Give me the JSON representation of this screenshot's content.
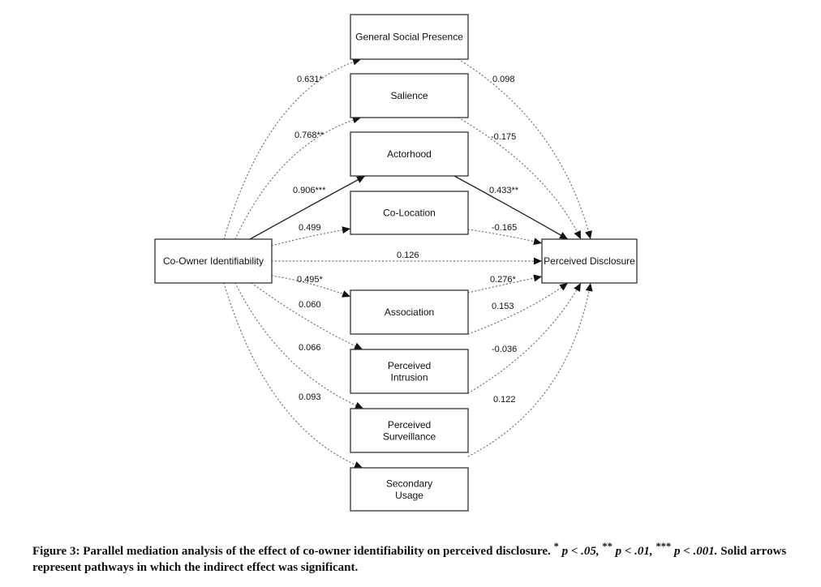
{
  "figure": {
    "nodes": {
      "x": "Co-Owner Identifiability",
      "y": "Perceived Disclosure",
      "mediators": [
        [
          "General Social Presence"
        ],
        [
          "Salience"
        ],
        [
          "Actorhood"
        ],
        [
          "Co-Location"
        ],
        [
          "Association"
        ],
        [
          "Perceived",
          "Intrusion"
        ],
        [
          "Perceived",
          "Surveillance"
        ],
        [
          "Secondary",
          "Usage"
        ]
      ]
    },
    "paths_a": [
      {
        "coef": "0.631*",
        "significant": false
      },
      {
        "coef": "0.768**",
        "significant": false
      },
      {
        "coef": "0.906***",
        "significant": true
      },
      {
        "coef": "0.499",
        "significant": false
      },
      {
        "coef": "0.495*",
        "significant": false
      },
      {
        "coef": "0.060",
        "significant": false
      },
      {
        "coef": "0.066",
        "significant": false
      },
      {
        "coef": "0.093",
        "significant": false
      }
    ],
    "paths_b": [
      {
        "coef": "0.098",
        "significant": false
      },
      {
        "coef": "-0.175",
        "significant": false
      },
      {
        "coef": "0.433**",
        "significant": true
      },
      {
        "coef": "-0.165",
        "significant": false
      },
      {
        "coef": "0.276*",
        "significant": false
      },
      {
        "coef": "0.153",
        "significant": false
      },
      {
        "coef": "-0.036",
        "significant": false
      },
      {
        "coef": "0.122",
        "significant": false
      }
    ],
    "direct": {
      "coef": "0.126",
      "significant": false
    }
  },
  "caption": {
    "lead": "Figure 3: Parallel mediation analysis of the effect of co-owner identifiability on perceived disclosure.",
    "sig1_stars": "*",
    "sig1_text": "p < .05,",
    "sig2_stars": "**",
    "sig2_text": "p < .01,",
    "sig3_stars": "***",
    "sig3_text": "p < .001.",
    "tail": "Solid arrows represent pathways in which the indirect effect was significant."
  }
}
